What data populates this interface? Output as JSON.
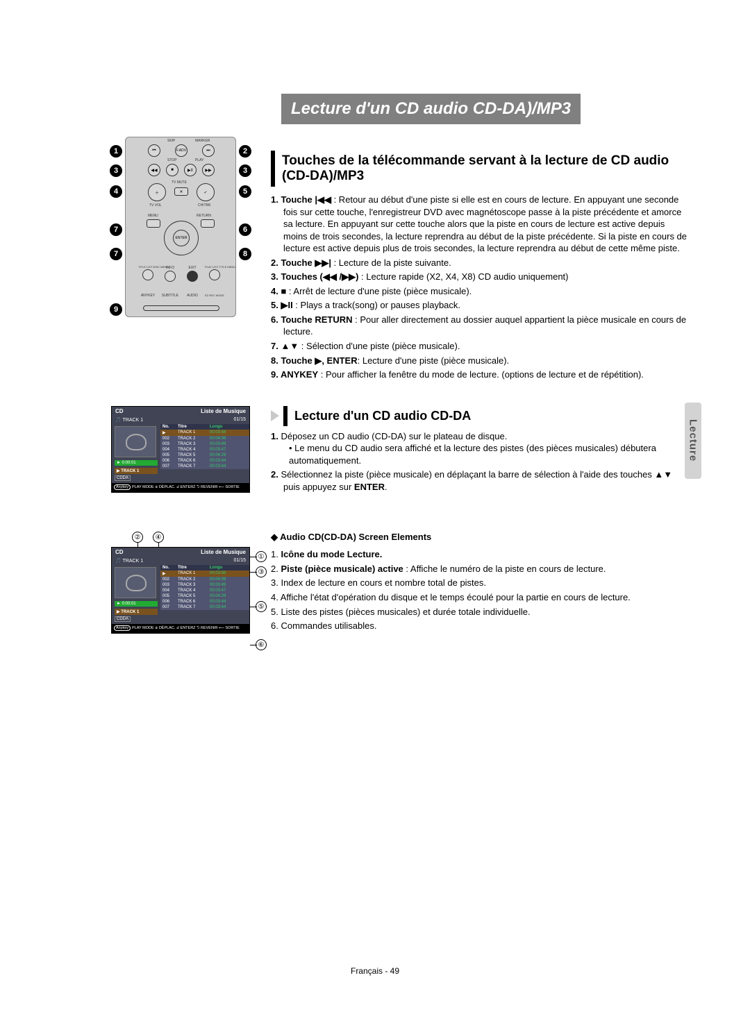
{
  "section_title": "Lecture d'un CD audio CD-DA)/MP3",
  "subsection1_title": "Touches de la télécommande servant à la lecture de CD audio (CD-DA)/MP3",
  "subsection2_title": "Lecture d'un CD audio CD-DA",
  "subsection3_title": "Audio CD(CD-DA) Screen Elements",
  "side_tab": "Lecture",
  "footer": "Français - 49",
  "remote": {
    "labels": [
      "SKIP",
      "MARKER",
      "F.ADV",
      "STOP",
      "PLAY",
      "TV VOL",
      "TV MUTE",
      "CH/TRK",
      "MENU",
      "RETURN",
      "ENTER",
      "TITLE LIST DISC MENU",
      "INFO",
      "EXIT",
      "PLAY LIST TITLE MENU",
      "ANYKEY",
      "SUBTITLE",
      "AUDIO",
      "EZ REC MODE"
    ],
    "callouts": [
      "1",
      "2",
      "3",
      "3",
      "4",
      "5",
      "7",
      "6",
      "7",
      "8",
      "9"
    ]
  },
  "buttons_desc": [
    {
      "num": "1.",
      "label": "Touche |◀◀",
      "text": " : Retour au début d'une piste si elle est en cours de lecture. En appuyant une seconde fois sur cette touche, l'enregistreur DVD avec magnétoscope passe à la piste précédente et amorce sa lecture. En appuyant sur cette touche alors que la piste en cours de lecture est active depuis moins de trois secondes, la lecture reprendra au début de la piste précédente. Si la piste en cours de lecture est active depuis plus de trois secondes, la lecture reprendra au début de cette même piste."
    },
    {
      "num": "2.",
      "label": "Touche ▶▶|",
      "text": " : Lecture de la piste suivante."
    },
    {
      "num": "3.",
      "label": "Touches (◀◀ /▶▶)",
      "text": " : Lecture rapide (X2, X4, X8) CD audio uniquement)"
    },
    {
      "num": "4.",
      "label": "■",
      "text": " : Arrêt de lecture d'une piste (pièce musicale)."
    },
    {
      "num": "5.",
      "label": "▶II",
      "text": " : Plays a track(song) or pauses playback."
    },
    {
      "num": "6.",
      "label": "Touche RETURN",
      "text": " : Pour aller directement au dossier auquel appartient la pièce musicale en cours de lecture."
    },
    {
      "num": "7.",
      "label": "▲▼",
      "text": " : Sélection d'une piste (pièce musicale)."
    },
    {
      "num": "8.",
      "label": "Touche ▶, ENTER",
      "text": ": Lecture d'une piste (pièce musicale)."
    },
    {
      "num": "9.",
      "label": "ANYKEY",
      "text": " : Pour afficher la fenêtre du mode de lecture. (options de lecture et de répétition)."
    }
  ],
  "cdda_steps": [
    {
      "num": "1.",
      "text": "Déposez un CD audio (CD-DA) sur le plateau de disque.",
      "bul": "• Le menu du CD audio sera affiché et la lecture des pistes (des pièces musicales) débutera automatiquement."
    },
    {
      "num": "2.",
      "text": "Sélectionnez la piste (pièce musicale) en déplaçant la barre de sélection à l'aide des touches ▲▼ puis appuyez sur ENTER.",
      "enter": "ENTER"
    }
  ],
  "screen_elements": [
    {
      "num": "1.",
      "label": "Icône du mode Lecture.",
      "text": ""
    },
    {
      "num": "2.",
      "label": "Piste (pièce musicale) active",
      "text": " : Affiche le numéro de la piste en cours de lecture."
    },
    {
      "num": "3.",
      "label": "",
      "text": "Index de lecture en cours et nombre total de pistes."
    },
    {
      "num": "4.",
      "label": "",
      "text": "Affiche l'état d'opération du disque et le temps écoulé pour la partie en cours de lecture."
    },
    {
      "num": "5.",
      "label": "",
      "text": "Liste des pistes (pièces musicales) et durée totale individuelle."
    },
    {
      "num": "6.",
      "label": "",
      "text": "Commandes utilisables."
    }
  ],
  "screen": {
    "cd": "CD",
    "liste": "Liste de Musique",
    "track": "TRACK 1",
    "count": "01/15",
    "time": "► 0:00:01",
    "trackbadge": "TRACK 1",
    "cdda": "CDDA",
    "cols": [
      "No.",
      "Titre",
      "Longu"
    ],
    "rows": [
      {
        "no": "",
        "t": "TRACK 1",
        "d": "00:03:58",
        "hl": true
      },
      {
        "no": "002",
        "t": "TRACK 2",
        "d": "00:04:08"
      },
      {
        "no": "003",
        "t": "TRACK 3",
        "d": "00:03:49"
      },
      {
        "no": "004",
        "t": "TRACK 4",
        "d": "00:03:47"
      },
      {
        "no": "005",
        "t": "TRACK 5",
        "d": "00:04:29"
      },
      {
        "no": "006",
        "t": "TRACK 6",
        "d": "00:03:44"
      },
      {
        "no": "007",
        "t": "TRACK 7",
        "d": "00:03:44"
      }
    ],
    "foot_anykey": "Anykey",
    "foot": "PLAY MODE ⯐ DÉPLAC. ⏎ ENTERZ ⮌ REVENIR ⟵ SORTIE"
  },
  "callnums2": [
    "②",
    "④",
    "①",
    "③",
    "⑤",
    "⑥"
  ]
}
